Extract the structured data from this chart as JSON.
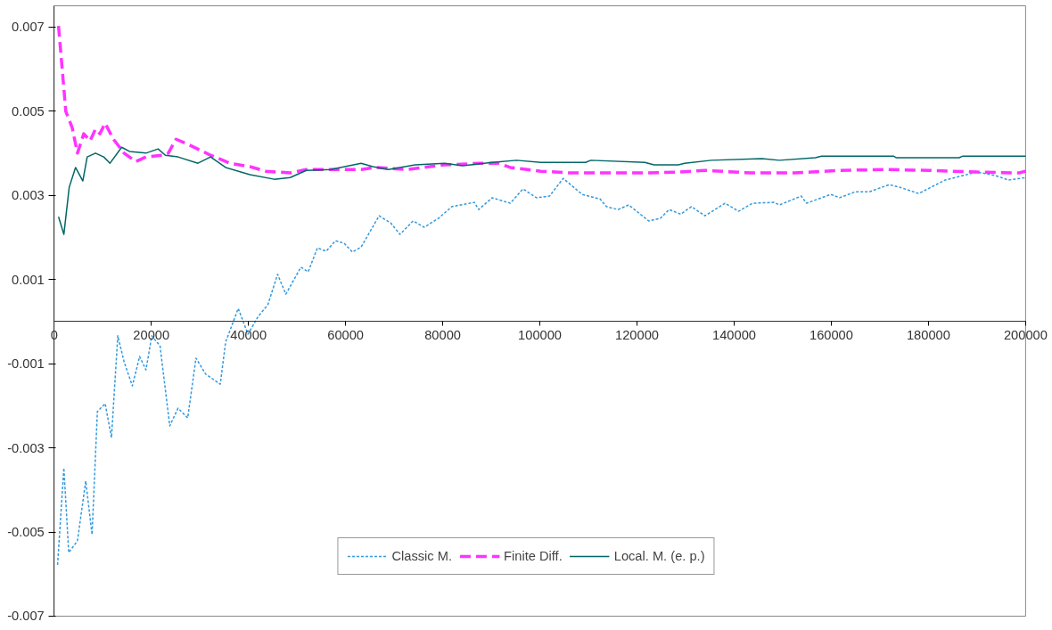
{
  "chart_data": {
    "type": "line",
    "xlim": [
      0,
      200000
    ],
    "xticks": [
      0,
      20000,
      40000,
      60000,
      80000,
      100000,
      120000,
      140000,
      160000,
      180000,
      200000
    ],
    "ylim": [
      -0.007,
      0.0075
    ],
    "yticks": [
      -0.007,
      -0.005,
      -0.003,
      -0.001,
      0.001,
      0.003,
      0.005,
      0.007
    ],
    "grid": false,
    "legend": "bottom",
    "series": [
      {
        "name": "Classic M.",
        "color": "#3399dd",
        "line_style": "dotted",
        "x": [
          700,
          2000,
          3000,
          4800,
          6500,
          7800,
          8900,
          10500,
          11800,
          13100,
          14400,
          16100,
          17600,
          18900,
          20100,
          21800,
          23800,
          25500,
          27500,
          29200,
          31200,
          34200,
          35300,
          37900,
          39900,
          42000,
          44000,
          46000,
          47700,
          50800,
          52300,
          54200,
          56000,
          57900,
          59700,
          61400,
          63200,
          66900,
          69300,
          71200,
          73900,
          76200,
          79100,
          81900,
          86500,
          87400,
          90200,
          93900,
          96500,
          99300,
          102000,
          104800,
          108700,
          112400,
          113700,
          116100,
          118300,
          122400,
          124800,
          126600,
          129000,
          131200,
          134000,
          138100,
          140900,
          143800,
          148200,
          149300,
          153800,
          154900,
          159900,
          161700,
          164900,
          167800,
          171900,
          174100,
          178000,
          183400,
          190000,
          193700,
          196500,
          200000
        ],
        "values": [
          -0.00578,
          -0.00348,
          -0.00549,
          -0.00521,
          -0.00379,
          -0.00506,
          -0.00214,
          -0.00195,
          -0.00276,
          -0.00034,
          -0.00096,
          -0.00153,
          -0.00083,
          -0.00115,
          -0.00034,
          -0.00058,
          -0.00248,
          -0.00206,
          -0.00229,
          -0.00087,
          -0.00125,
          -0.00149,
          -0.00049,
          0.00031,
          -0.0003,
          0.00012,
          0.0004,
          0.00112,
          0.00065,
          0.00129,
          0.00118,
          0.00175,
          0.00167,
          0.00192,
          0.00186,
          0.00165,
          0.00177,
          0.00251,
          0.00234,
          0.00207,
          0.00239,
          0.00224,
          0.00245,
          0.00273,
          0.00283,
          0.00266,
          0.00294,
          0.00281,
          0.00315,
          0.00294,
          0.00298,
          0.0034,
          0.00302,
          0.00291,
          0.00273,
          0.00266,
          0.00277,
          0.00239,
          0.00245,
          0.00266,
          0.00255,
          0.00273,
          0.00251,
          0.00281,
          0.00262,
          0.00281,
          0.00283,
          0.00277,
          0.00298,
          0.00281,
          0.00302,
          0.00294,
          0.00308,
          0.00308,
          0.00325,
          0.00319,
          0.00304,
          0.00336,
          0.00355,
          0.00347,
          0.00336,
          0.00342
        ]
      },
      {
        "name": "Finite Diff.",
        "color": "#ff33ff",
        "line_style": "dashed",
        "x": [
          900,
          2400,
          3700,
          4800,
          6100,
          7400,
          8500,
          9400,
          10500,
          12200,
          14400,
          16800,
          18900,
          22200,
          23500,
          25100,
          27900,
          32200,
          36200,
          40300,
          43600,
          48600,
          51900,
          56900,
          63200,
          66200,
          72500,
          80400,
          87800,
          91500,
          93900,
          100200,
          106300,
          112400,
          121600,
          128500,
          134000,
          143300,
          152500,
          161700,
          171500,
          180200,
          190000,
          198700,
          200000
        ],
        "values": [
          0.00702,
          0.00499,
          0.00461,
          0.004,
          0.00446,
          0.00429,
          0.00457,
          0.00446,
          0.00471,
          0.00433,
          0.004,
          0.0038,
          0.00391,
          0.00395,
          0.004,
          0.00433,
          0.00419,
          0.00395,
          0.00376,
          0.00368,
          0.00357,
          0.00353,
          0.00361,
          0.00361,
          0.00361,
          0.00366,
          0.00361,
          0.00372,
          0.00376,
          0.00376,
          0.00366,
          0.00357,
          0.00353,
          0.00353,
          0.00353,
          0.00355,
          0.00359,
          0.00353,
          0.00353,
          0.00359,
          0.00361,
          0.00359,
          0.00355,
          0.00353,
          0.00357
        ]
      },
      {
        "name": "Local. M. (e. p.)",
        "color": "#006666",
        "line_style": "solid",
        "x": [
          900,
          2000,
          3100,
          4400,
          5900,
          6800,
          8500,
          10200,
          11500,
          13900,
          15500,
          18900,
          21400,
          22900,
          25500,
          29600,
          32200,
          35300,
          40300,
          45300,
          48600,
          51900,
          56900,
          63200,
          65600,
          68800,
          74300,
          80400,
          84100,
          90200,
          95200,
          100200,
          109400,
          110500,
          121600,
          123500,
          128500,
          129800,
          135300,
          145700,
          149300,
          156700,
          158000,
          172800,
          173400,
          186300,
          187100,
          200000
        ],
        "values": [
          0.00249,
          0.00207,
          0.00319,
          0.00366,
          0.00334,
          0.00391,
          0.004,
          0.00391,
          0.00376,
          0.00414,
          0.00404,
          0.004,
          0.0041,
          0.00395,
          0.00391,
          0.00376,
          0.00391,
          0.00366,
          0.00349,
          0.00338,
          0.00342,
          0.00359,
          0.00361,
          0.00376,
          0.00368,
          0.00361,
          0.00372,
          0.00376,
          0.0037,
          0.00378,
          0.00383,
          0.00378,
          0.00378,
          0.00383,
          0.00378,
          0.00372,
          0.00372,
          0.00376,
          0.00383,
          0.00387,
          0.00383,
          0.00389,
          0.00393,
          0.00393,
          0.00389,
          0.00389,
          0.00393,
          0.00393
        ]
      }
    ]
  }
}
